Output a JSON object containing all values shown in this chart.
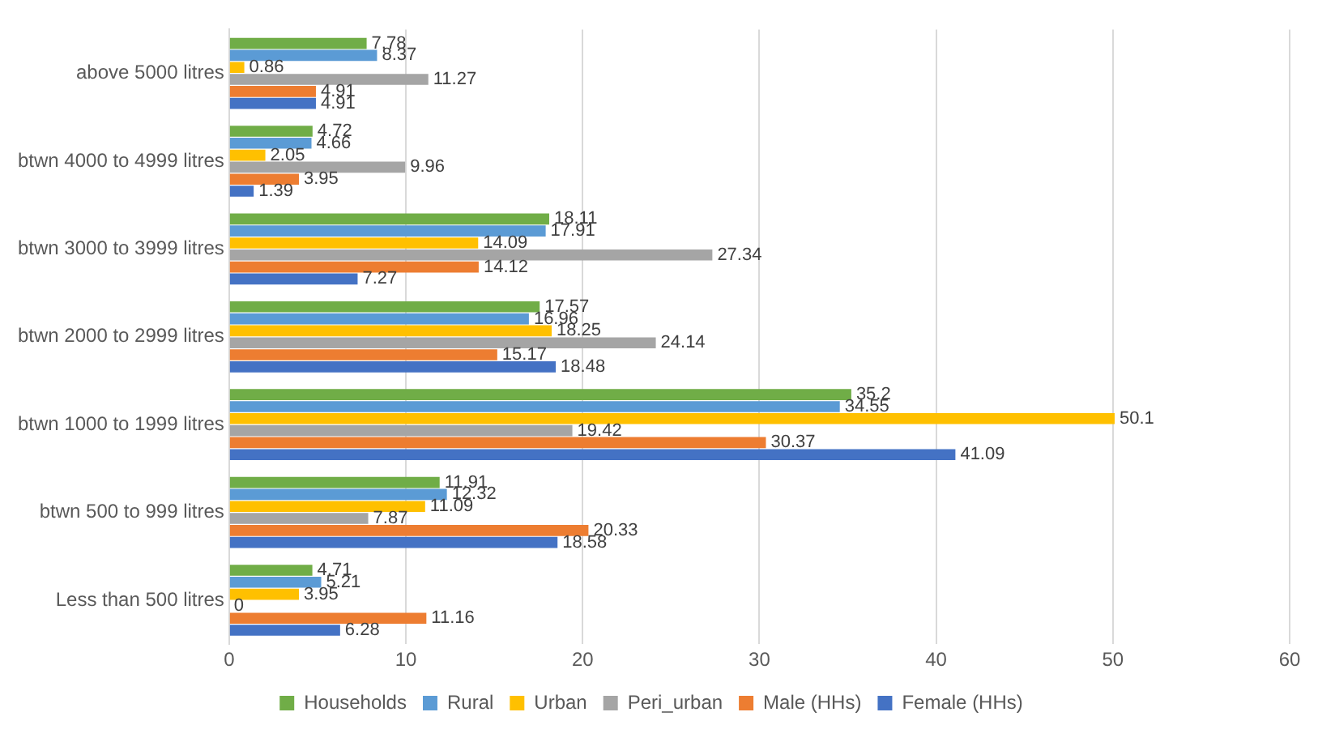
{
  "chart_data": {
    "type": "bar",
    "orientation": "horizontal",
    "categories": [
      "above 5000 litres",
      "btwn 4000 to 4999 litres",
      "btwn 3000 to 3999 litres",
      "btwn 2000 to 2999 litres",
      "btwn 1000 to 1999 litres",
      "btwn 500 to 999 litres",
      "Less than 500 litres"
    ],
    "series": [
      {
        "name": "Households",
        "color": "#70ad47",
        "values": [
          7.78,
          4.72,
          18.11,
          17.57,
          35.2,
          11.91,
          4.71
        ]
      },
      {
        "name": "Rural",
        "color": "#5b9bd5",
        "values": [
          8.37,
          4.66,
          17.91,
          16.96,
          34.55,
          12.32,
          5.21
        ]
      },
      {
        "name": "Urban",
        "color": "#ffc000",
        "values": [
          0.86,
          2.05,
          14.09,
          18.25,
          50.1,
          11.09,
          3.95
        ]
      },
      {
        "name": "Peri_urban",
        "color": "#a5a5a5",
        "values": [
          11.27,
          9.96,
          27.34,
          24.14,
          19.42,
          7.87,
          0
        ]
      },
      {
        "name": "Male (HHs)",
        "color": "#ed7d31",
        "values": [
          4.91,
          3.95,
          14.12,
          15.17,
          30.37,
          20.33,
          11.16
        ]
      },
      {
        "name": "Female (HHs)",
        "color": "#4472c4",
        "values": [
          4.91,
          1.39,
          7.27,
          18.48,
          41.09,
          18.58,
          6.28
        ]
      }
    ],
    "xlim": [
      0,
      60
    ],
    "xticks": [
      0,
      10,
      20,
      30,
      40,
      50,
      60
    ],
    "grid": "x",
    "legend": "bottom",
    "data_labels": true
  }
}
